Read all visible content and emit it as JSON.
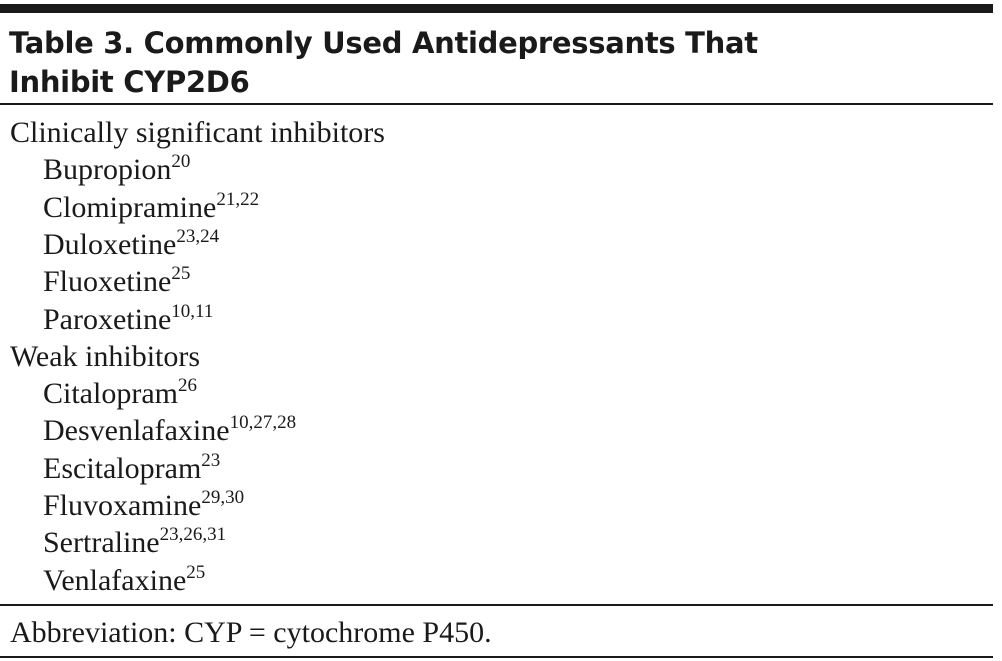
{
  "table": {
    "title": [
      "Table 3. Commonly Used Antidepressants That",
      "Inhibit CYP2D6"
    ],
    "groups": [
      {
        "label": "Clinically significant inhibitors",
        "items": [
          {
            "name": "Bupropion",
            "refs": "20"
          },
          {
            "name": "Clomipramine",
            "refs": "21,22"
          },
          {
            "name": "Duloxetine",
            "refs": "23,24"
          },
          {
            "name": "Fluoxetine",
            "refs": "25"
          },
          {
            "name": "Paroxetine",
            "refs": "10,11"
          }
        ]
      },
      {
        "label": "Weak inhibitors",
        "items": [
          {
            "name": "Citalopram",
            "refs": "26"
          },
          {
            "name": "Desvenlafaxine",
            "refs": "10,27,28"
          },
          {
            "name": "Escitalopram",
            "refs": "23"
          },
          {
            "name": "Fluvoxamine",
            "refs": "29,30"
          },
          {
            "name": "Sertraline",
            "refs": "23,26,31"
          },
          {
            "name": "Venlafaxine",
            "refs": "25"
          }
        ]
      }
    ],
    "footnote": "Abbreviation: CYP = cytochrome P450."
  }
}
